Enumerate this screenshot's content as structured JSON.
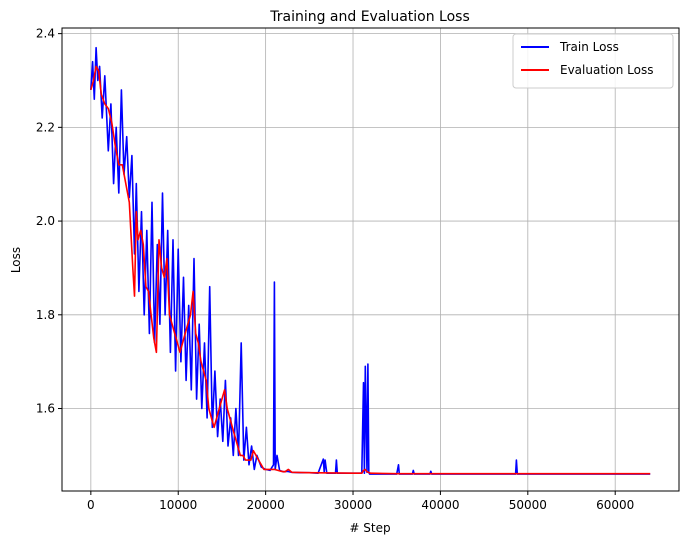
{
  "chart_data": {
    "type": "line",
    "title": "Training and Evaluation Loss",
    "xlabel": "# Step",
    "ylabel": "Loss",
    "xlim": [
      -3300,
      67300
    ],
    "ylim": [
      1.424,
      2.412
    ],
    "xticks": [
      0,
      10000,
      20000,
      30000,
      40000,
      50000,
      60000
    ],
    "yticks": [
      1.6,
      1.8,
      2.0,
      2.2,
      2.4
    ],
    "xtick_labels": [
      "0",
      "10000",
      "20000",
      "30000",
      "40000",
      "50000",
      "60000"
    ],
    "ytick_labels": [
      "1.6",
      "1.8",
      "2.0",
      "2.2",
      "2.4"
    ],
    "grid": true,
    "legend_position": "top-right",
    "series": [
      {
        "name": "Train Loss",
        "color": "#0000ff",
        "x": [
          0,
          200,
          400,
          600,
          800,
          1000,
          1300,
          1600,
          2000,
          2300,
          2600,
          2900,
          3200,
          3500,
          3800,
          4100,
          4400,
          4700,
          5000,
          5200,
          5500,
          5800,
          6100,
          6400,
          6700,
          7000,
          7300,
          7600,
          7900,
          8200,
          8500,
          8800,
          9100,
          9400,
          9700,
          10000,
          10300,
          10600,
          10900,
          11200,
          11500,
          11800,
          12100,
          12400,
          12700,
          13000,
          13300,
          13600,
          13900,
          14200,
          14500,
          14800,
          15100,
          15400,
          15700,
          16000,
          16300,
          16600,
          16900,
          17200,
          17500,
          17800,
          18100,
          18400,
          18700,
          19000,
          19500,
          20000,
          20500,
          20900,
          21000,
          21100,
          21300,
          21600,
          22000,
          22500,
          23000,
          24000,
          25000,
          26000,
          26600,
          26700,
          26800,
          27000,
          28000,
          28100,
          28200,
          29000,
          30000,
          31000,
          31200,
          31300,
          31400,
          31600,
          31700,
          31800,
          31900,
          32000,
          33000,
          35000,
          35200,
          35300,
          36000,
          36800,
          36900,
          37000,
          38000,
          38800,
          38900,
          39000,
          40000,
          45000,
          48000,
          48600,
          48700,
          48800,
          50000,
          55000,
          60000,
          64000
        ],
        "y": [
          2.28,
          2.34,
          2.26,
          2.37,
          2.3,
          2.33,
          2.22,
          2.31,
          2.15,
          2.25,
          2.08,
          2.2,
          2.06,
          2.28,
          2.1,
          2.18,
          2.05,
          2.14,
          1.93,
          2.08,
          1.85,
          2.02,
          1.8,
          1.98,
          1.76,
          2.04,
          1.74,
          1.95,
          1.78,
          2.06,
          1.8,
          1.98,
          1.72,
          1.96,
          1.68,
          1.94,
          1.7,
          1.88,
          1.66,
          1.82,
          1.64,
          1.92,
          1.62,
          1.78,
          1.6,
          1.74,
          1.58,
          1.86,
          1.56,
          1.68,
          1.54,
          1.62,
          1.53,
          1.66,
          1.52,
          1.58,
          1.5,
          1.6,
          1.5,
          1.74,
          1.49,
          1.56,
          1.48,
          1.52,
          1.47,
          1.5,
          1.475,
          1.47,
          1.468,
          1.48,
          1.87,
          1.47,
          1.5,
          1.468,
          1.465,
          1.466,
          1.464,
          1.463,
          1.463,
          1.462,
          1.492,
          1.465,
          1.49,
          1.462,
          1.462,
          1.49,
          1.462,
          1.462,
          1.462,
          1.462,
          1.655,
          1.462,
          1.69,
          1.464,
          1.695,
          1.464,
          1.46,
          1.46,
          1.46,
          1.46,
          1.48,
          1.46,
          1.46,
          1.46,
          1.468,
          1.46,
          1.46,
          1.46,
          1.466,
          1.46,
          1.46,
          1.46,
          1.46,
          1.46,
          1.49,
          1.46,
          1.46,
          1.46,
          1.46,
          1.46
        ]
      },
      {
        "name": "Evaluation Loss",
        "color": "#ff0000",
        "x": [
          0,
          300,
          600,
          900,
          1200,
          1600,
          2000,
          2400,
          2800,
          3200,
          3600,
          4000,
          4400,
          4800,
          5000,
          5200,
          5400,
          5700,
          6000,
          6300,
          6600,
          6900,
          7200,
          7500,
          7800,
          8100,
          8400,
          8700,
          9000,
          9300,
          9600,
          9900,
          10200,
          10500,
          10800,
          11100,
          11400,
          11700,
          12000,
          12300,
          12600,
          12900,
          13200,
          13500,
          13800,
          14100,
          14400,
          14700,
          15000,
          15300,
          15600,
          15900,
          16200,
          16500,
          16800,
          17100,
          17400,
          17700,
          18000,
          18300,
          18600,
          18900,
          19200,
          19500,
          19800,
          20200,
          20600,
          21000,
          21400,
          21800,
          22200,
          22600,
          23000,
          25000,
          30000,
          31000,
          31200,
          31400,
          31600,
          32000,
          35000,
          40000,
          50000,
          60000,
          64000
        ],
        "y": [
          2.28,
          2.3,
          2.33,
          2.32,
          2.27,
          2.25,
          2.24,
          2.21,
          2.16,
          2.12,
          2.12,
          2.08,
          2.04,
          1.9,
          1.84,
          2.02,
          1.96,
          1.98,
          1.95,
          1.86,
          1.85,
          1.8,
          1.75,
          1.72,
          1.96,
          1.9,
          1.88,
          1.92,
          1.8,
          1.78,
          1.76,
          1.74,
          1.72,
          1.74,
          1.76,
          1.78,
          1.8,
          1.85,
          1.76,
          1.74,
          1.7,
          1.68,
          1.66,
          1.6,
          1.58,
          1.56,
          1.58,
          1.6,
          1.62,
          1.64,
          1.6,
          1.58,
          1.56,
          1.54,
          1.52,
          1.5,
          1.5,
          1.49,
          1.49,
          1.49,
          1.51,
          1.5,
          1.49,
          1.48,
          1.47,
          1.47,
          1.47,
          1.47,
          1.468,
          1.466,
          1.465,
          1.47,
          1.464,
          1.463,
          1.462,
          1.462,
          1.468,
          1.47,
          1.465,
          1.462,
          1.461,
          1.461,
          1.461,
          1.461,
          1.461
        ]
      }
    ]
  }
}
